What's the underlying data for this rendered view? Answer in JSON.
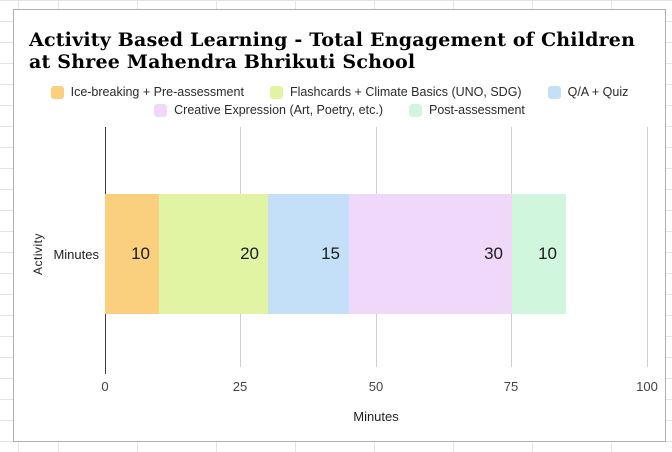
{
  "chart_data": {
    "type": "bar",
    "orientation": "horizontal",
    "stacked": true,
    "title": "Activity Based Learning - Total Engagement of Children at Shree Mahendra Bhrikuti School",
    "categories": [
      "Minutes"
    ],
    "series": [
      {
        "name": "Ice-breaking + Pre-assessment",
        "values": [
          10
        ],
        "color": "#fad07e"
      },
      {
        "name": "Flashcards + Climate Basics (UNO, SDG)",
        "values": [
          20
        ],
        "color": "#e1f4a3"
      },
      {
        "name": "Q/A + Quiz",
        "values": [
          15
        ],
        "color": "#c3e0f8"
      },
      {
        "name": "Creative Expression (Art, Poetry, etc.)",
        "values": [
          30
        ],
        "color": "#efd8fa"
      },
      {
        "name": "Post-assessment",
        "values": [
          10
        ],
        "color": "#d1f6de"
      }
    ],
    "xlabel": "Minutes",
    "ylabel": "Activity",
    "xlim": [
      0,
      100
    ],
    "x_ticks": [
      0,
      25,
      50,
      75,
      100
    ],
    "legend_position": "top",
    "grid": "vertical-only",
    "data_labels": [
      10,
      20,
      15,
      30,
      10
    ]
  },
  "colors": {
    "grid_line": "#cfcfcf",
    "axis_line": "#3c3c3c",
    "card_border": "#b0b0b0",
    "sheet_grid": "#e4e4e4"
  }
}
